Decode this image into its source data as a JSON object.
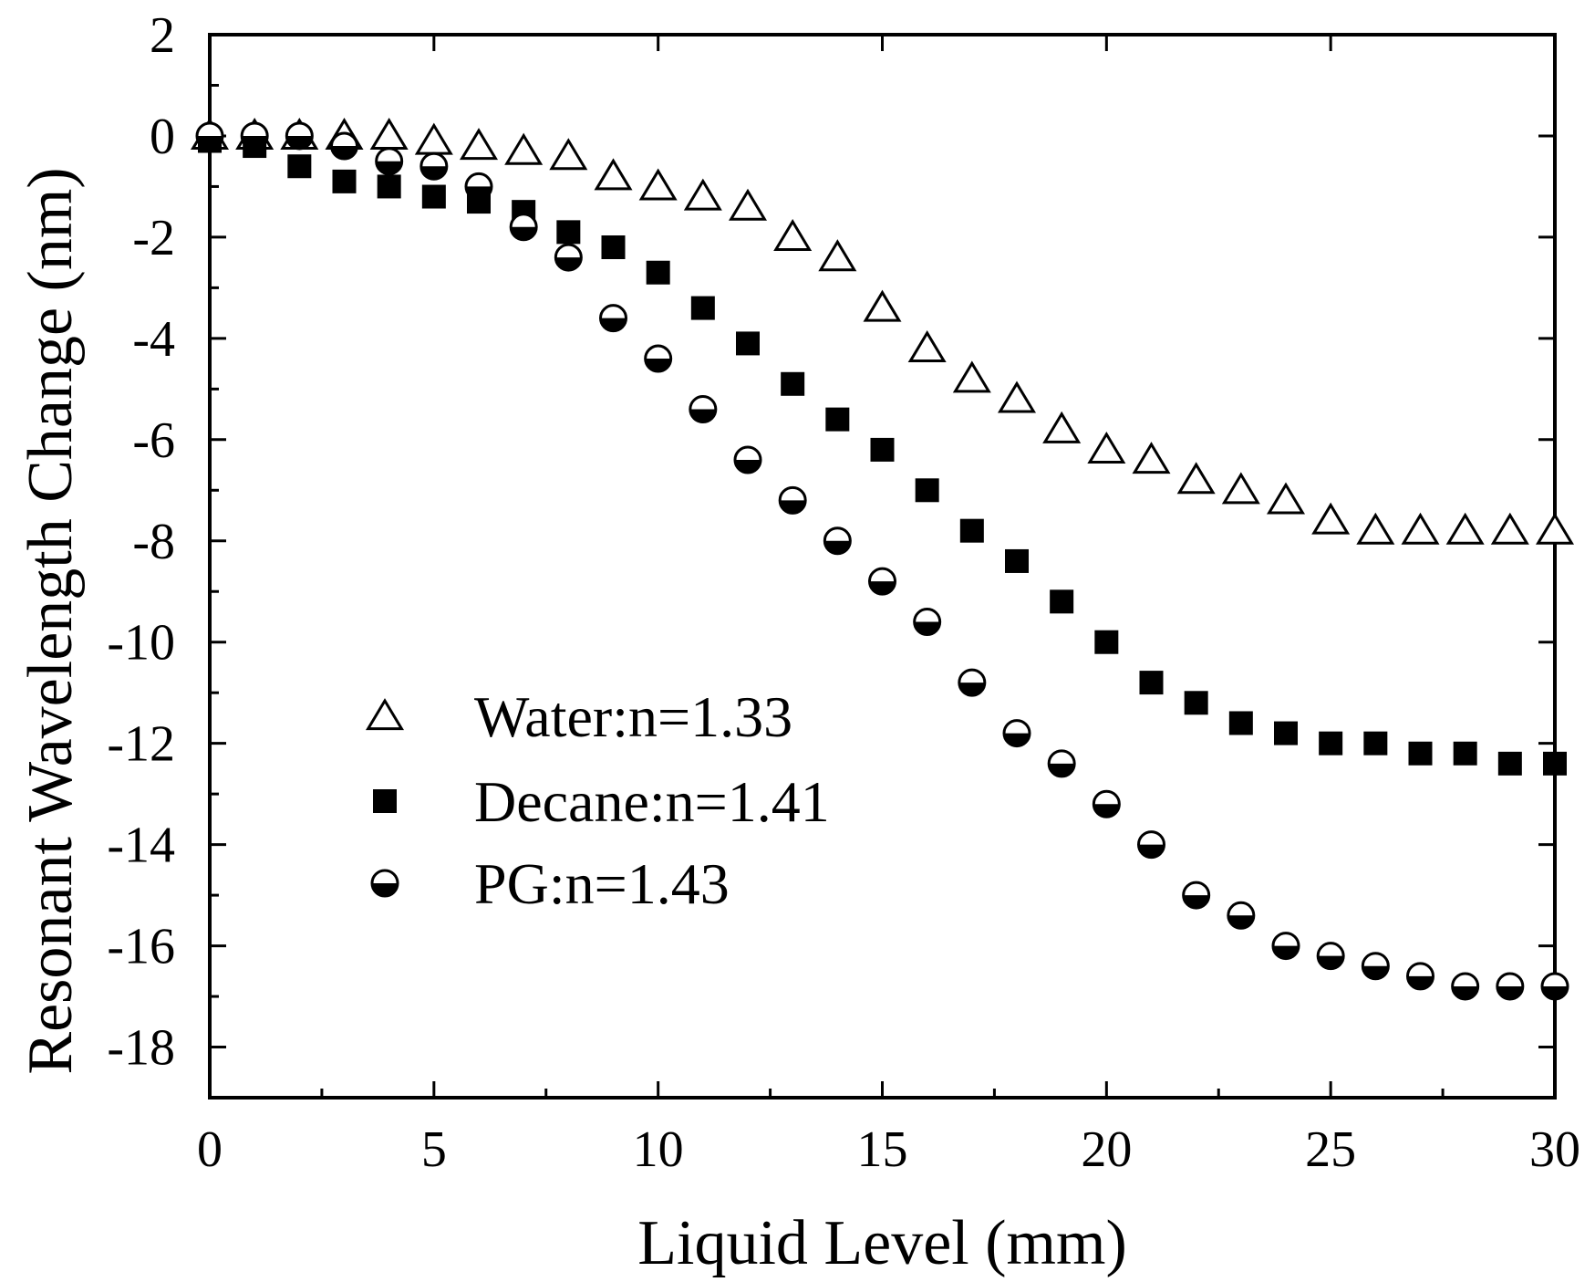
{
  "chart_data": {
    "type": "scatter",
    "title": "",
    "xlabel": "Liquid Level (mm)",
    "ylabel": "Resonant  Wavelength Change (nm)",
    "xlim": [
      0,
      30
    ],
    "ylim": [
      -19,
      2
    ],
    "xticks": [
      0,
      5,
      10,
      15,
      20,
      25,
      30
    ],
    "yticks": [
      2,
      0,
      -2,
      -4,
      -6,
      -8,
      -10,
      -12,
      -14,
      -16,
      -18
    ],
    "grid": false,
    "legend_position": "lower-left",
    "x": [
      0,
      1,
      2,
      3,
      4,
      5,
      6,
      7,
      8,
      9,
      10,
      11,
      12,
      13,
      14,
      15,
      16,
      17,
      18,
      19,
      20,
      21,
      22,
      23,
      24,
      25,
      26,
      27,
      28,
      29,
      30
    ],
    "series": [
      {
        "name": "Water:n=1.33",
        "marker": "open-triangle",
        "values": [
          0,
          0,
          0,
          0,
          0,
          -0.1,
          -0.2,
          -0.3,
          -0.4,
          -0.8,
          -1.0,
          -1.2,
          -1.4,
          -2.0,
          -2.4,
          -3.4,
          -4.2,
          -4.8,
          -5.2,
          -5.8,
          -6.2,
          -6.4,
          -6.8,
          -7.0,
          -7.2,
          -7.6,
          -7.8,
          -7.8,
          -7.8,
          -7.8,
          -7.8
        ]
      },
      {
        "name": "Decane:n=1.41",
        "marker": "filled-square",
        "values": [
          -0.1,
          -0.2,
          -0.6,
          -0.9,
          -1.0,
          -1.2,
          -1.3,
          -1.5,
          -1.9,
          -2.2,
          -2.7,
          -3.4,
          -4.1,
          -4.9,
          -5.6,
          -6.2,
          -7.0,
          -7.8,
          -8.4,
          -9.2,
          -10.0,
          -10.8,
          -11.2,
          -11.6,
          -11.8,
          -12.0,
          -12.0,
          -12.2,
          -12.2,
          -12.4,
          -12.4
        ]
      },
      {
        "name": "PG:n=1.43",
        "marker": "half-filled-circle",
        "values": [
          0,
          0,
          0,
          -0.2,
          -0.5,
          -0.6,
          -1.0,
          -1.8,
          -2.4,
          -3.6,
          -4.4,
          -5.4,
          -6.4,
          -7.2,
          -8.0,
          -8.8,
          -9.6,
          -10.8,
          -11.8,
          -12.4,
          -13.2,
          -14.0,
          -15.0,
          -15.4,
          -16.0,
          -16.2,
          -16.4,
          -16.6,
          -16.8,
          -16.8,
          -16.8
        ]
      }
    ]
  }
}
